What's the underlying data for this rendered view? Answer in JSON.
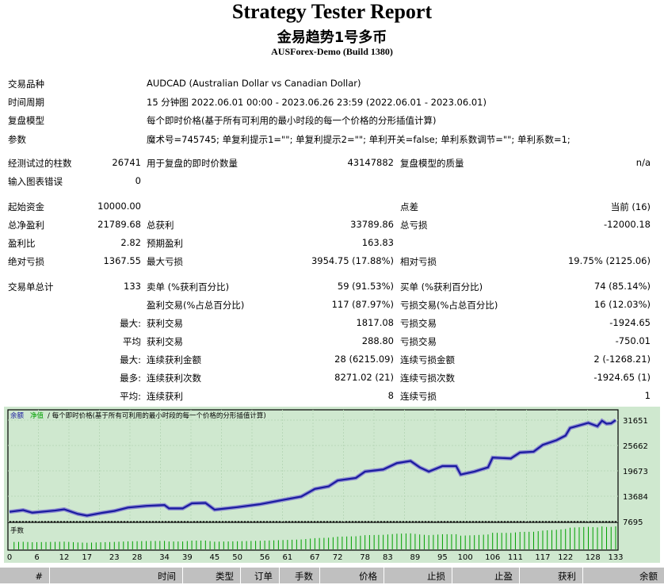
{
  "header": {
    "title": "Strategy Tester Report",
    "ea": "金易趋势1号多币",
    "server": "AUSForex-Demo (Build 1380)"
  },
  "info": [
    {
      "label": "交易品种",
      "value": "AUDCAD (Australian Dollar vs Canadian Dollar)"
    },
    {
      "label": "时间周期",
      "value": "15 分钟图 2022.06.01 00:00 - 2023.06.26 23:59 (2022.06.01 - 2023.06.01)"
    },
    {
      "label": "复盘模型",
      "value": "每个即时价格(基于所有可利用的最小时段的每一个价格的分形插值计算)"
    },
    {
      "label": "参数",
      "value": "魔术号=745745; 单复利提示1=\"\"; 单复利提示2=\"\"; 单利开关=false; 单利系数调节=\"\"; 单利系数=1;"
    }
  ],
  "rows": [
    [
      "经测试过的柱数",
      "26741",
      "用于复盘的即时价数量",
      "43147882",
      "复盘模型的质量",
      "n/a"
    ],
    [
      "输入图表错误",
      "0",
      "",
      "",
      "",
      ""
    ],
    [
      "起始资金",
      "10000.00",
      "",
      "",
      "点差",
      "当前 (16)"
    ],
    [
      "总净盈利",
      "21789.68",
      "总获利",
      "33789.86",
      "总亏损",
      "-12000.18"
    ],
    [
      "盈利比",
      "2.82",
      "预期盈利",
      "163.83",
      "",
      ""
    ],
    [
      "绝对亏损",
      "1367.55",
      "最大亏损",
      "3954.75 (17.88%)",
      "相对亏损",
      "19.75% (2125.06)"
    ],
    [
      "交易单总计",
      "133",
      "卖单 (%获利百分比)",
      "59 (91.53%)",
      "买单 (%获利百分比)",
      "74 (85.14%)"
    ],
    [
      "",
      "",
      "盈利交易(%占总百分比)",
      "117 (87.97%)",
      "亏损交易(%占总百分比)",
      "16 (12.03%)"
    ],
    [
      "",
      "最大:",
      "获利交易",
      "1817.08",
      "亏损交易",
      "-1924.65"
    ],
    [
      "",
      "平均",
      "获利交易",
      "288.80",
      "亏损交易",
      "-750.01"
    ],
    [
      "",
      "最大:",
      "连续获利金额",
      "28 (6215.09)",
      "连续亏损金额",
      "2 (-1268.21)"
    ],
    [
      "",
      "最多:",
      "连续获利次数",
      "8271.02 (21)",
      "连续亏损次数",
      "-1924.65 (1)"
    ],
    [
      "",
      "平均:",
      "连续获利",
      "8",
      "连续亏损",
      "1"
    ]
  ],
  "chart_data": {
    "type": "line",
    "legend": {
      "balance": "余额",
      "equity": "净值",
      "model": "/ 每个即时价格(基于所有可利用的最小时段的每一个价格的分形插值计算)"
    },
    "volume_label": "手数",
    "yticks": [
      31651,
      25662,
      19673,
      13684,
      7695
    ],
    "ylim": [
      7695,
      31651
    ],
    "xticks": [
      0,
      6,
      12,
      17,
      23,
      28,
      34,
      39,
      45,
      50,
      56,
      61,
      67,
      72,
      78,
      83,
      89,
      95,
      100,
      106,
      111,
      117,
      122,
      128,
      133
    ],
    "xlim": [
      0,
      133
    ],
    "balance": [
      [
        0,
        10000
      ],
      [
        3,
        10400
      ],
      [
        5,
        9800
      ],
      [
        10,
        10300
      ],
      [
        12,
        10600
      ],
      [
        15,
        9500
      ],
      [
        17,
        9100
      ],
      [
        20,
        9700
      ],
      [
        23,
        10200
      ],
      [
        26,
        11000
      ],
      [
        30,
        11400
      ],
      [
        34,
        11600
      ],
      [
        35,
        10800
      ],
      [
        38,
        10800
      ],
      [
        40,
        12000
      ],
      [
        43,
        12100
      ],
      [
        45,
        10500
      ],
      [
        50,
        11100
      ],
      [
        55,
        11800
      ],
      [
        60,
        12800
      ],
      [
        64,
        13600
      ],
      [
        67,
        15400
      ],
      [
        70,
        16000
      ],
      [
        72,
        17400
      ],
      [
        76,
        18000
      ],
      [
        78,
        19500
      ],
      [
        82,
        20000
      ],
      [
        85,
        21500
      ],
      [
        88,
        22000
      ],
      [
        90,
        20500
      ],
      [
        92,
        19500
      ],
      [
        95,
        20800
      ],
      [
        98,
        20800
      ],
      [
        99,
        18800
      ],
      [
        102,
        19500
      ],
      [
        105,
        20500
      ],
      [
        106,
        22800
      ],
      [
        110,
        22600
      ],
      [
        112,
        24000
      ],
      [
        115,
        24200
      ],
      [
        117,
        25800
      ],
      [
        120,
        26900
      ],
      [
        122,
        28000
      ],
      [
        123,
        29800
      ],
      [
        127,
        31000
      ],
      [
        129,
        30200
      ],
      [
        130,
        31500
      ],
      [
        131,
        30800
      ],
      [
        132,
        30900
      ],
      [
        133,
        31651
      ]
    ],
    "colors": {
      "bg": "#cfe8cf",
      "line": "#1a1aa0",
      "equity": "#8f8fd0",
      "volume": "#00a000"
    }
  },
  "table_header": [
    "#",
    "时间",
    "类型",
    "订单",
    "手数",
    "价格",
    "止损",
    "止盈",
    "获利",
    "余额"
  ]
}
